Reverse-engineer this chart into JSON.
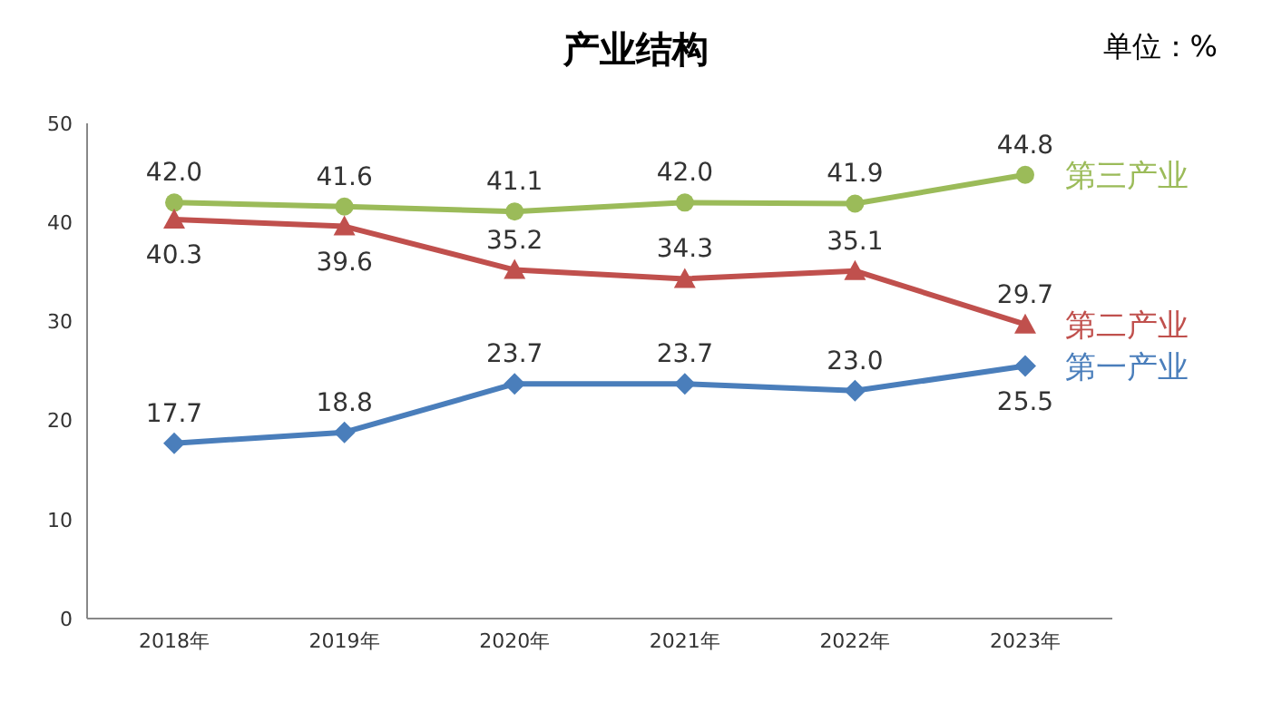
{
  "chart_data": {
    "type": "line",
    "title": "产业结构",
    "annotations": [
      "单位：%"
    ],
    "categories": [
      "2018年",
      "2019年",
      "2020年",
      "2021年",
      "2022年",
      "2023年"
    ],
    "series": [
      {
        "name": "第三产业",
        "color": "#9bbb59",
        "marker": "circle",
        "values": [
          42.0,
          41.6,
          41.1,
          42.0,
          41.9,
          44.8
        ],
        "value_labels": [
          "42.0",
          "41.6",
          "41.1",
          "42.0",
          "41.9",
          "44.8"
        ]
      },
      {
        "name": "第二产业",
        "color": "#c0504d",
        "marker": "triangle",
        "values": [
          40.3,
          39.6,
          35.2,
          34.3,
          35.1,
          29.7
        ],
        "value_labels": [
          "40.3",
          "39.6",
          "35.2",
          "34.3",
          "35.1",
          "29.7"
        ]
      },
      {
        "name": "第一产业",
        "color": "#4a7ebb",
        "marker": "diamond",
        "values": [
          17.7,
          18.8,
          23.7,
          23.7,
          23.0,
          25.5
        ],
        "value_labels": [
          "17.7",
          "18.8",
          "23.7",
          "23.7",
          "23.0",
          "25.5"
        ]
      }
    ],
    "ylim": [
      0,
      50
    ],
    "yticks": [
      0,
      10,
      20,
      30,
      40,
      50
    ],
    "grid": false
  }
}
